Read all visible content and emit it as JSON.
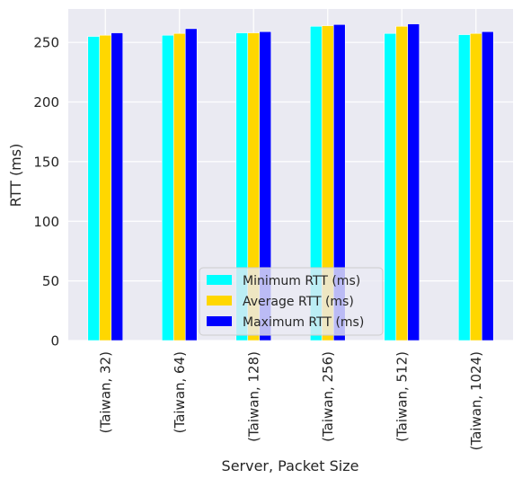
{
  "chart_data": {
    "type": "bar",
    "title": "",
    "xlabel": "Server, Packet Size",
    "ylabel": "RTT (ms)",
    "ylim": [
      0,
      278
    ],
    "yticks": [
      0,
      50,
      100,
      150,
      200,
      250
    ],
    "grid": true,
    "legend_position": "lower center",
    "categories": [
      "(Taiwan, 32)",
      "(Taiwan, 64)",
      "(Taiwan, 128)",
      "(Taiwan, 256)",
      "(Taiwan, 512)",
      "(Taiwan, 1024)"
    ],
    "series": [
      {
        "name": "Minimum RTT (ms)",
        "color": "#00ffff",
        "values": [
          255.0,
          256.0,
          258.0,
          263.5,
          257.5,
          256.5
        ]
      },
      {
        "name": "Average RTT (ms)",
        "color": "#ffd700",
        "values": [
          256.0,
          257.5,
          258.0,
          264.0,
          263.5,
          257.5
        ]
      },
      {
        "name": "Maximum RTT (ms)",
        "color": "#0000ff",
        "values": [
          258.0,
          261.5,
          259.0,
          265.0,
          265.5,
          259.0
        ]
      }
    ]
  }
}
